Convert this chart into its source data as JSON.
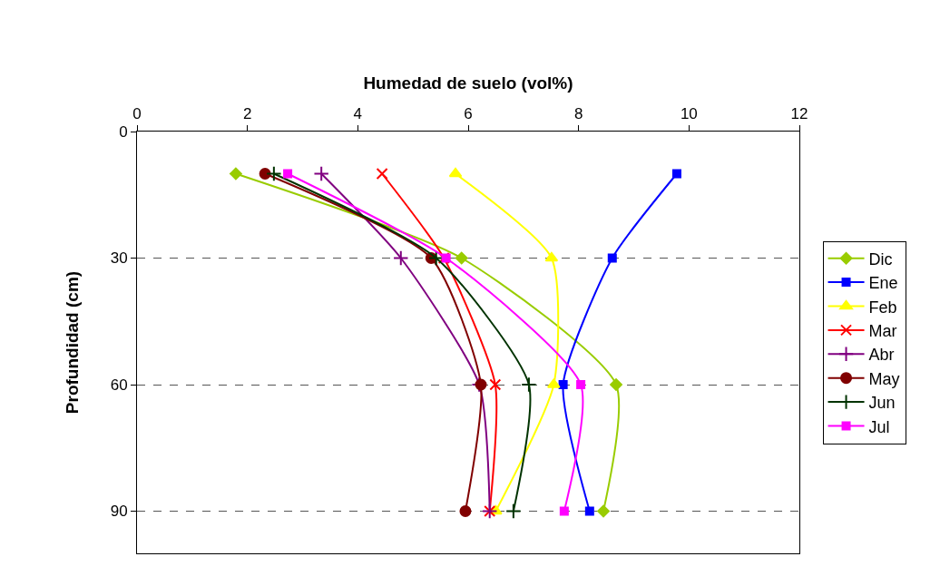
{
  "chart_data": {
    "type": "line",
    "xlabel": "Humedad de suelo (vol%)",
    "ylabel": "Profundidad (cm)",
    "xlim": [
      0,
      12
    ],
    "xticks": [
      0,
      2,
      4,
      6,
      8,
      10,
      12
    ],
    "ylim": [
      100,
      0
    ],
    "yticks": [
      0,
      30,
      60,
      90
    ],
    "grid": "y",
    "legend": "right",
    "line_style": "solid",
    "series": [
      {
        "name": "Dic",
        "color": "#99cc00",
        "marker": "diamond",
        "x": [
          1.79,
          5.88,
          8.68,
          8.45
        ],
        "values": [
          10,
          30,
          60,
          90
        ]
      },
      {
        "name": "Ene",
        "color": "#0000ff",
        "marker": "square",
        "x": [
          9.78,
          8.61,
          7.72,
          8.2
        ],
        "values": [
          10,
          30,
          60,
          90
        ]
      },
      {
        "name": "Feb",
        "color": "#ffff00",
        "marker": "triangle",
        "x": [
          5.77,
          7.51,
          7.55,
          6.5
        ],
        "values": [
          10,
          30,
          60,
          90
        ]
      },
      {
        "name": "Mar",
        "color": "#ff0000",
        "marker": "x",
        "x": [
          4.44,
          5.56,
          6.49,
          6.39
        ],
        "values": [
          10,
          30,
          60,
          90
        ]
      },
      {
        "name": "Abr",
        "color": "#800080",
        "marker": "cross",
        "x": [
          3.34,
          4.78,
          6.2,
          6.39
        ],
        "values": [
          10,
          30,
          60,
          90
        ]
      },
      {
        "name": "May",
        "color": "#800000",
        "marker": "circle",
        "x": [
          2.32,
          5.33,
          6.23,
          5.95
        ],
        "values": [
          10,
          30,
          60,
          90
        ]
      },
      {
        "name": "Jun",
        "color": "#003300",
        "marker": "cross",
        "x": [
          2.48,
          5.42,
          7.1,
          6.82
        ],
        "values": [
          10,
          30,
          60,
          90
        ]
      },
      {
        "name": "Jul",
        "color": "#ff00ff",
        "marker": "square",
        "x": [
          2.73,
          5.6,
          8.04,
          7.74
        ],
        "values": [
          10,
          30,
          60,
          90
        ]
      }
    ]
  }
}
